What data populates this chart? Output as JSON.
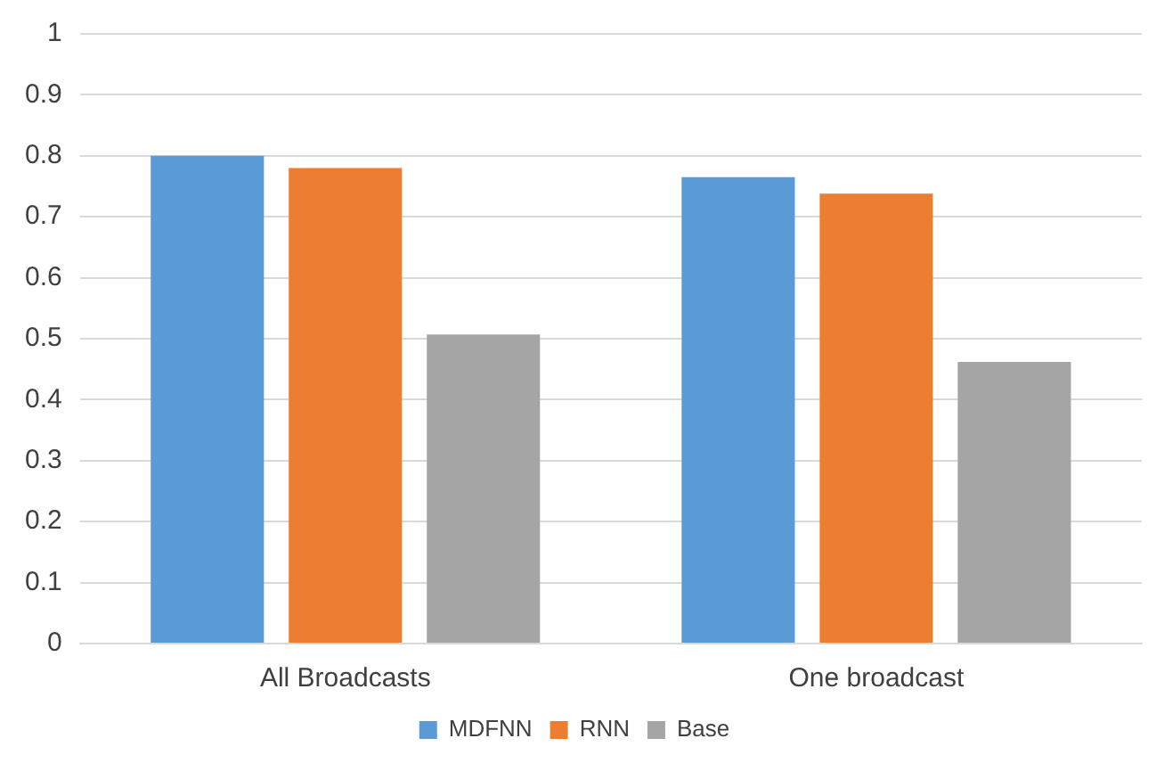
{
  "chart_data": {
    "type": "bar",
    "categories": [
      "All Broadcasts",
      "One broadcast"
    ],
    "series": [
      {
        "name": "MDFNN",
        "color": "#5b9bd5",
        "values": [
          0.8,
          0.765
        ]
      },
      {
        "name": "RNN",
        "color": "#ed7d31",
        "values": [
          0.78,
          0.738
        ]
      },
      {
        "name": "Base",
        "color": "#a5a5a5",
        "values": [
          0.507,
          0.462
        ]
      }
    ],
    "ylim": [
      0,
      1
    ],
    "yticks": [
      0,
      0.1,
      0.2,
      0.3,
      0.4,
      0.5,
      0.6,
      0.7,
      0.8,
      0.9,
      1
    ],
    "grid": "y",
    "legend": "bottom"
  }
}
